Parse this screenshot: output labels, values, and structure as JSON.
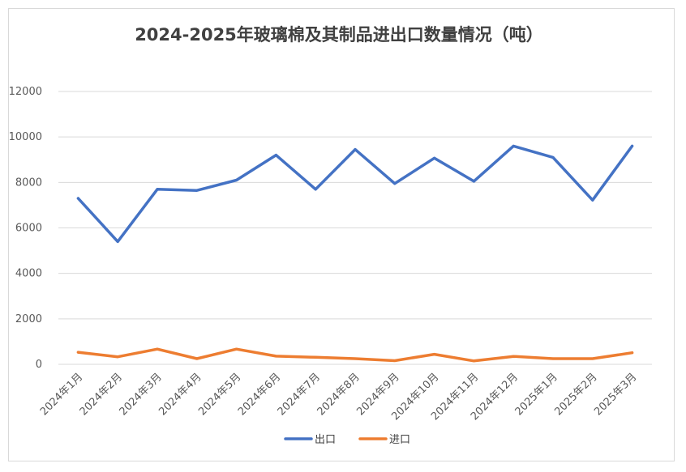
{
  "chart_data": {
    "type": "line",
    "title": "2024-2025年玻璃棉及其制品进出口数量情况（吨）",
    "xlabel": "",
    "ylabel": "",
    "ylim": [
      0,
      12000
    ],
    "yticks": [
      0,
      2000,
      4000,
      6000,
      8000,
      10000,
      12000
    ],
    "grid": true,
    "legend_position": "bottom",
    "categories": [
      "2024年1月",
      "2024年2月",
      "2024年3月",
      "2024年4月",
      "2024年5月",
      "2024年6月",
      "2024年7月",
      "2024年8月",
      "2024年9月",
      "2024年10月",
      "2024年11月",
      "2024年12月",
      "2025年1月",
      "2025年2月",
      "2025年3月"
    ],
    "series": [
      {
        "name": "出口",
        "color": "#4472C4",
        "values": [
          7300,
          5400,
          7700,
          7650,
          8100,
          9200,
          7700,
          9450,
          7950,
          9070,
          8050,
          9600,
          9100,
          7220,
          9600
        ]
      },
      {
        "name": "进口",
        "color": "#ED7D31",
        "values": [
          530,
          330,
          670,
          250,
          670,
          360,
          310,
          250,
          160,
          440,
          150,
          350,
          250,
          250,
          510
        ]
      }
    ]
  }
}
